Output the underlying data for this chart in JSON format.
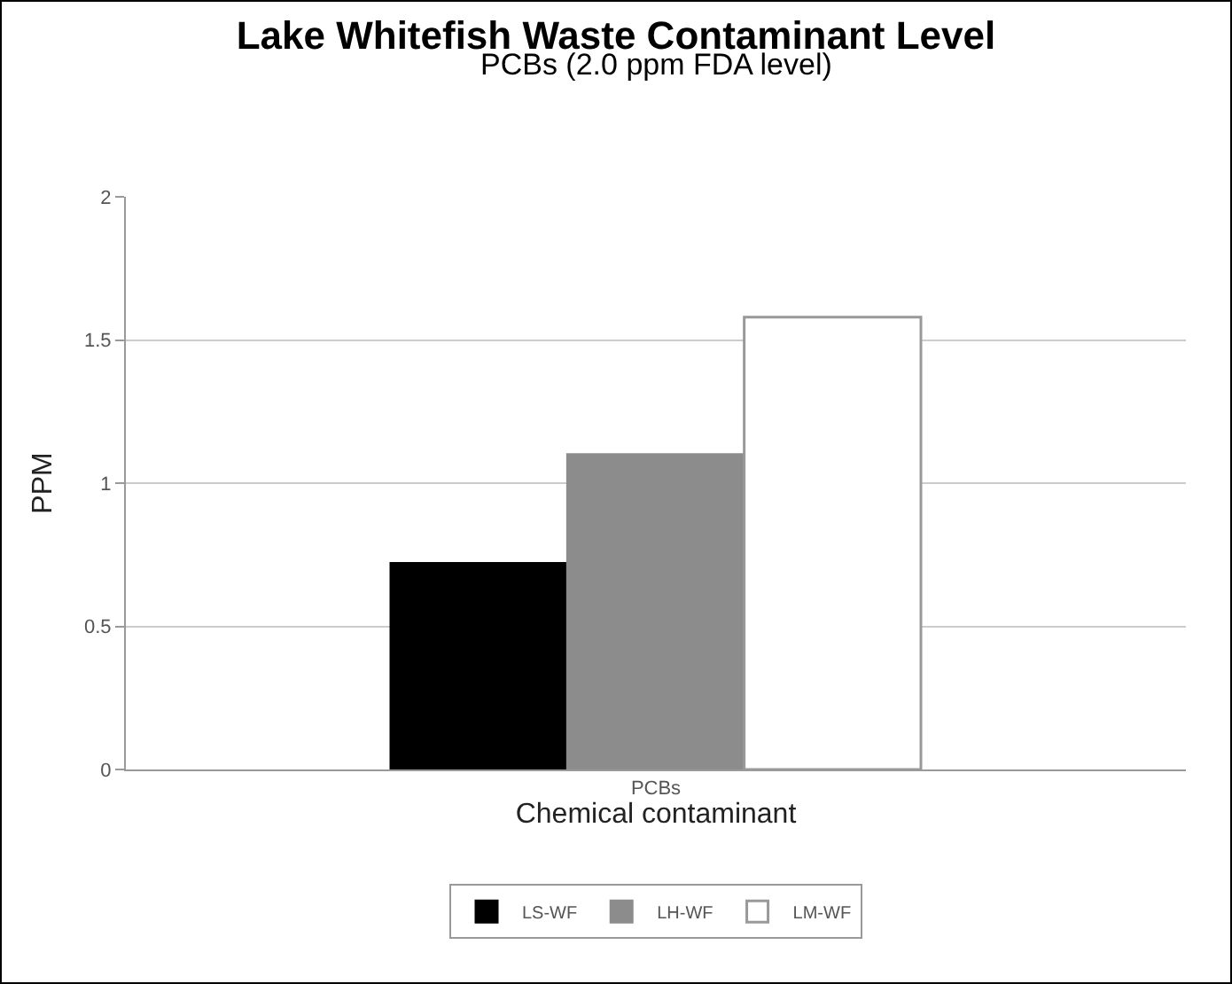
{
  "chart_data": {
    "type": "bar",
    "title": "Lake Whitefish Waste Contaminant Level",
    "subtitle": "PCBs (2.0 ppm FDA level)",
    "xlabel": "Chemical contaminant",
    "ylabel": "PPM",
    "categories": [
      "PCBs"
    ],
    "series": [
      {
        "name": "LS-WF",
        "color": "#000000",
        "values": [
          0.72
        ]
      },
      {
        "name": "LH-WF",
        "color": "#8c8c8c",
        "values": [
          1.1
        ]
      },
      {
        "name": "LM-WF",
        "color": "#ffffff",
        "values": [
          1.58
        ]
      }
    ],
    "ylim": [
      0,
      2
    ],
    "yticks": [
      0,
      0.5,
      1,
      1.5,
      2
    ],
    "grid": "y",
    "legend": "bottom"
  }
}
